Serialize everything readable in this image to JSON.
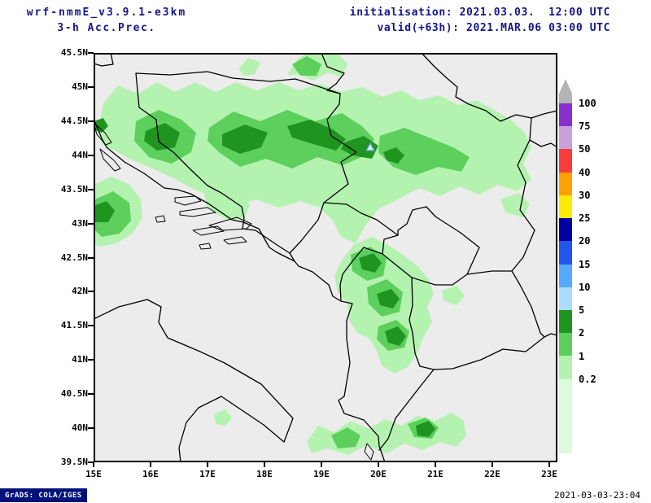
{
  "header": {
    "model": "wrf-nmmE_v3.9.1-e3km",
    "product": "3-h Acc.Prec.",
    "init_line": "initialisation: 2021.03.03.  12:00 UTC",
    "valid_line": "valid(+63h): 2021.MAR.06 03:00 UTC"
  },
  "map": {
    "y_ticks": [
      "45.5N",
      "45N",
      "44.5N",
      "44N",
      "43.5N",
      "43N",
      "42.5N",
      "42N",
      "41.5N",
      "41N",
      "40.5N",
      "40N",
      "39.5N"
    ],
    "x_ticks": [
      "15E",
      "16E",
      "17E",
      "18E",
      "19E",
      "20E",
      "21E",
      "22E",
      "23E"
    ],
    "marker": "station-triangle"
  },
  "colorbar": {
    "tick_labels": [
      "100",
      "75",
      "50",
      "40",
      "30",
      "25",
      "20",
      "15",
      "10",
      "5",
      "2",
      "1",
      "0.2"
    ],
    "colors_top_to_bottom": [
      "#b4b4b4",
      "#8830cc",
      "#c8a0dc",
      "#fa3c3c",
      "#ffa000",
      "#ffeb00",
      "#0000a0",
      "#2255ee",
      "#55aaff",
      "#aadcff",
      "#1f9520",
      "#5ccf5c",
      "#b4f2b0",
      "#dcfadc"
    ]
  },
  "chart_data": {
    "type": "heatmap",
    "title": "3-h Acc.Prec.",
    "x_tick_labels": [
      "15E",
      "16E",
      "17E",
      "18E",
      "19E",
      "20E",
      "21E",
      "22E",
      "23E"
    ],
    "y_tick_labels": [
      "39.5N",
      "40N",
      "40.5N",
      "41N",
      "41.5N",
      "42N",
      "42.5N",
      "43N",
      "43.5N",
      "44N",
      "44.5N",
      "45N",
      "45.5N"
    ],
    "legend_levels_mm": [
      0.2,
      1,
      2,
      5,
      10,
      15,
      20,
      25,
      30,
      40,
      50,
      75,
      100
    ],
    "legend_position": "right",
    "visible_shading": "greens (0.2 to >2 mm) over the western Balkans"
  },
  "footer": {
    "credit": "GrADS: COLA/IGES",
    "timestamp": "2021-03-03-23:04"
  },
  "palette": {
    "map-bg": "#ececec",
    "precip-light": "#b4f2b0",
    "precip-medium": "#5ccf5c",
    "precip-dark": "#1f9520",
    "header-text": "#15158a",
    "credit-bg": "#00127a",
    "marker-blue": "#5aa0d2"
  }
}
